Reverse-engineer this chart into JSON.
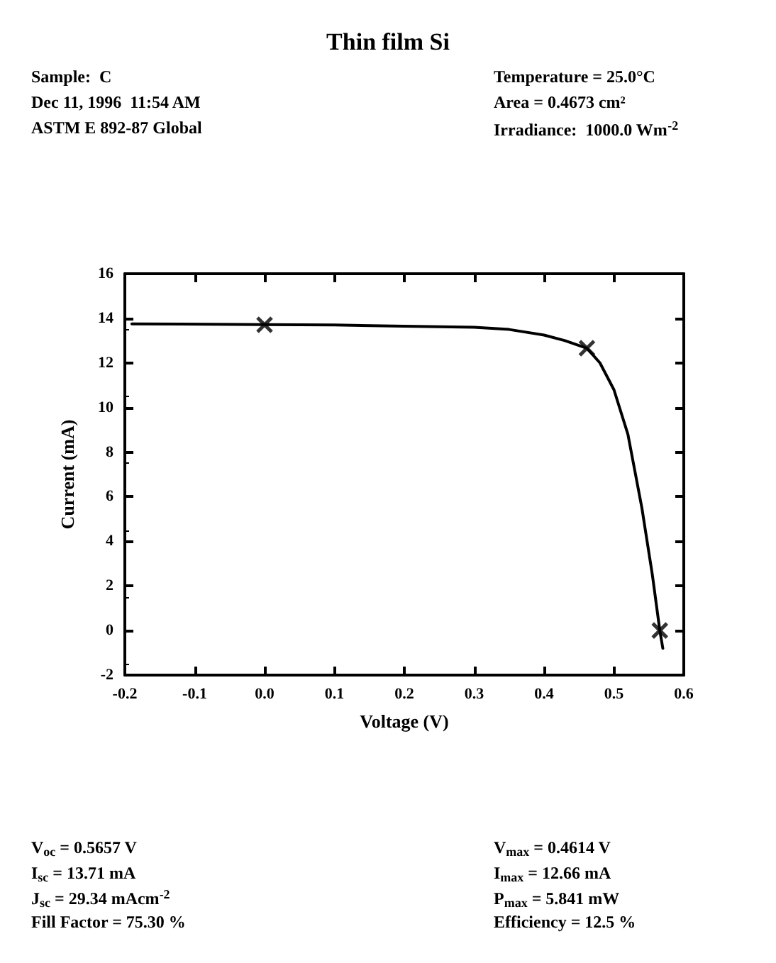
{
  "chart_data": {
    "type": "line",
    "title": "Thin film Si",
    "xlabel": "Voltage (V)",
    "ylabel": "Current (mA)",
    "annotations": [
      "Sample:  C",
      "Dec 11, 1996  11:54 AM",
      "ASTM E 892-87 Global",
      "Temperature = 25.0°C",
      "Area = 0.4673 cm²",
      "Irradiance:  1000.0 Wm$^{-2}$",
      "V$_{oc}$ = 0.5657 V",
      "I$_{sc}$ = 13.71 mA",
      "J$_{sc}$ = 29.34 mAcm$^{-2}$",
      "Fill Factor = 75.30 %",
      "V$_{max}$ = 0.4614 V",
      "I$_{max}$ = 12.66 mA",
      "P$_{max}$ = 5.841 mW",
      "Efficiency = 12.5 %"
    ],
    "series": [
      {
        "color": "#000000",
        "marker": "none",
        "line_style": "solid",
        "x": [
          -0.19,
          0.0,
          0.1,
          0.2,
          0.3,
          0.35,
          0.4,
          0.43,
          0.4614,
          0.48,
          0.5,
          0.52,
          0.54,
          0.555,
          0.5657,
          0.57
        ],
        "values": [
          13.75,
          13.72,
          13.7,
          13.65,
          13.6,
          13.5,
          13.25,
          13.0,
          12.66,
          12.0,
          10.8,
          8.8,
          5.5,
          2.5,
          0.0,
          -0.8
        ]
      },
      {
        "type": "scatter",
        "color": "#000000",
        "marker": "cross",
        "x": [
          0.0,
          0.4614,
          0.5657
        ],
        "values": [
          13.71,
          12.66,
          0.0
        ]
      }
    ],
    "xlim": [
      -0.2,
      0.6
    ],
    "xticks": [
      -0.2,
      -0.1,
      {
        "value": 0,
        "label": "0.0"
      },
      0.1,
      0.2,
      0.3,
      0.4,
      0.5,
      0.6
    ],
    "ylim": [
      -2,
      16
    ],
    "yticks": [
      -2,
      0,
      2,
      4,
      6,
      8,
      10,
      12,
      14,
      16
    ],
    "grid": false
  }
}
